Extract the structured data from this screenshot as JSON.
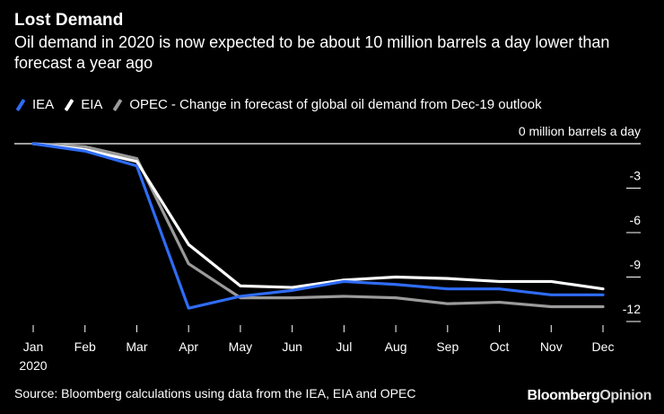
{
  "header": {
    "title": "Lost Demand",
    "subtitle": "Oil demand in 2020 is now expected to be about 10 million barrels a day lower than forecast a year ago"
  },
  "legend": {
    "description": "- Change in forecast of global oil demand from Dec-19 outlook"
  },
  "footer": {
    "source": "Source: Bloomberg calculations using data from the IEA, EIA and OPEC",
    "brand_main": "Bloomberg",
    "brand_sub": "Opinion"
  },
  "colors": {
    "background": "#000000",
    "IEA": "#2f6cf6",
    "EIA": "#ffffff",
    "OPEC": "#9b9b9b",
    "gridline": "#ffffff"
  },
  "chart_data": {
    "type": "line",
    "categories": [
      "Jan",
      "Feb",
      "Mar",
      "Apr",
      "May",
      "Jun",
      "Jul",
      "Aug",
      "Sep",
      "Oct",
      "Nov",
      "Dec"
    ],
    "year_label": "2020",
    "ylim": [
      -12.5,
      0.5
    ],
    "yticks": [
      0,
      -3,
      -6,
      -9,
      -12
    ],
    "ytick_labels": [
      "0 million barrels a day",
      "-3",
      "-6",
      "-9",
      "-12"
    ],
    "grid": false,
    "legend_position": "top-left",
    "series": [
      {
        "name": "IEA",
        "values": [
          0,
          -0.5,
          -1.5,
          -11.1,
          -10.3,
          -9.9,
          -9.3,
          -9.5,
          -9.8,
          -9.8,
          -10.2,
          -10.2
        ]
      },
      {
        "name": "EIA",
        "values": [
          0,
          -0.4,
          -1.2,
          -6.8,
          -9.6,
          -9.7,
          -9.2,
          -9.0,
          -9.1,
          -9.3,
          -9.3,
          -9.8
        ]
      },
      {
        "name": "OPEC",
        "values": [
          0,
          -0.2,
          -1.0,
          -8.1,
          -10.4,
          -10.4,
          -10.3,
          -10.4,
          -10.8,
          -10.7,
          -11.0,
          -11.0
        ]
      }
    ]
  }
}
